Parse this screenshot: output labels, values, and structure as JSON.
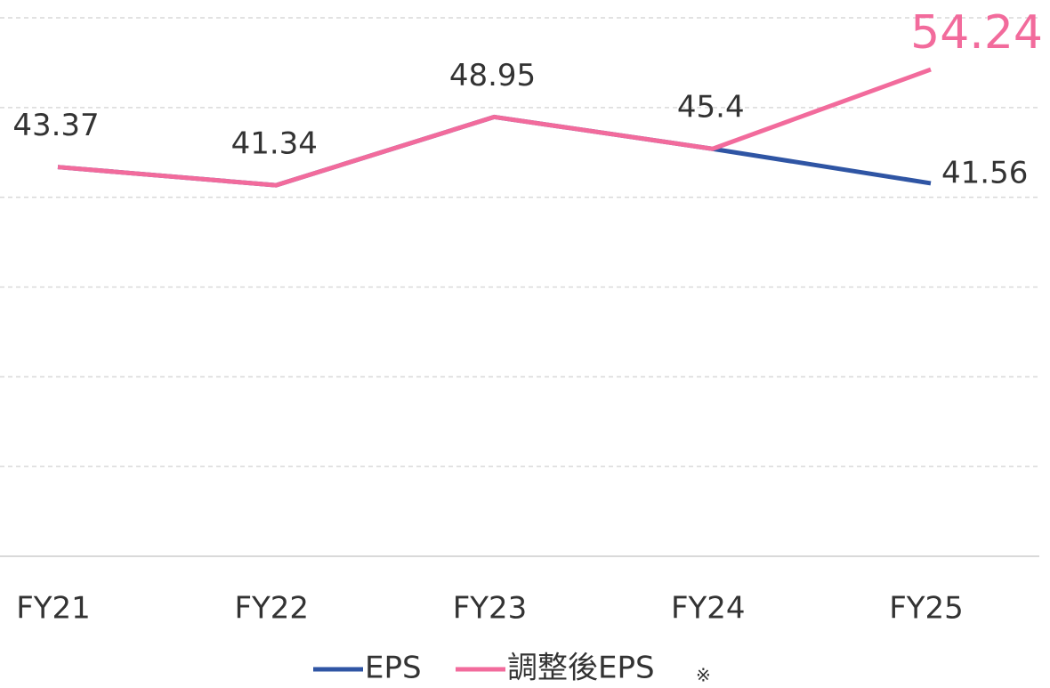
{
  "chart_data": {
    "type": "line",
    "categories": [
      "FY21",
      "FY22",
      "FY23",
      "FY24",
      "FY25"
    ],
    "series": [
      {
        "name": "EPS",
        "color": "#2f55a4",
        "values": [
          43.37,
          41.34,
          48.95,
          45.4,
          41.56
        ]
      },
      {
        "name": "調整後EPS",
        "color": "#f26b9c",
        "values": [
          43.37,
          41.34,
          48.95,
          45.4,
          54.24
        ]
      }
    ],
    "legend_note": "※",
    "ylim": [
      0,
      60
    ],
    "yticks": [
      0,
      10,
      20,
      30,
      40,
      50,
      60
    ],
    "grid": true
  }
}
